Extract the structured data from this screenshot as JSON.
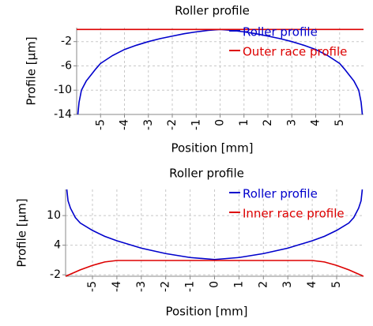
{
  "chart_data": [
    {
      "type": "line",
      "title": "Roller profile",
      "x_label": "Position [mm]",
      "y_label": "Profile [µm]",
      "xlim": [
        -6,
        6
      ],
      "ylim": [
        -14,
        0.3
      ],
      "xticks": [
        -5,
        -4,
        -3,
        -2,
        -1,
        0,
        1,
        2,
        3,
        4,
        5
      ],
      "yticks": [
        -2,
        -6,
        -10,
        -14
      ],
      "grid": true,
      "legend": "upper right",
      "series": [
        {
          "name": "Roller profile",
          "color": "#0000cc",
          "x": [
            -5.95,
            -5.9,
            -5.8,
            -5.6,
            -5.4,
            -5.2,
            -5,
            -4.5,
            -4,
            -3.5,
            -3,
            -2.5,
            -2,
            -1.5,
            -1,
            -0.5,
            0,
            0.5,
            1,
            1.5,
            2,
            2.5,
            3,
            3.5,
            4,
            4.5,
            5,
            5.2,
            5.4,
            5.6,
            5.8,
            5.9,
            5.95
          ],
          "values": [
            -14,
            -12,
            -10,
            -8.5,
            -7.5,
            -6.5,
            -5.6,
            -4.3,
            -3.3,
            -2.6,
            -2,
            -1.5,
            -1.1,
            -0.7,
            -0.4,
            -0.15,
            0,
            -0.15,
            -0.4,
            -0.7,
            -1.1,
            -1.5,
            -2,
            -2.6,
            -3.3,
            -4.3,
            -5.6,
            -6.5,
            -7.5,
            -8.5,
            -10,
            -12,
            -14
          ]
        },
        {
          "name": "Outer race profile",
          "color": "#dd0000",
          "x": [
            -6,
            6
          ],
          "values": [
            0,
            0
          ]
        }
      ]
    },
    {
      "type": "line",
      "title": "Roller profile",
      "x_label": "Position [mm]",
      "y_label": "Profile [µm]",
      "xlim": [
        -6.1,
        6.1
      ],
      "ylim": [
        -2.3,
        15.3
      ],
      "xticks": [
        -5,
        -4,
        -3,
        -2,
        -1,
        0,
        1,
        2,
        3,
        4,
        5
      ],
      "yticks": [
        10,
        4,
        -2
      ],
      "grid": true,
      "legend": "upper right",
      "series": [
        {
          "name": "Roller profile",
          "color": "#0000cc",
          "x": [
            -6.05,
            -6,
            -5.9,
            -5.7,
            -5.5,
            -5,
            -4.5,
            -4,
            -3,
            -2,
            -1,
            0,
            1,
            2,
            3,
            4,
            4.5,
            5,
            5.5,
            5.7,
            5.9,
            6,
            6.05
          ],
          "values": [
            15.3,
            13,
            11.5,
            9.6,
            8.5,
            7,
            5.8,
            4.9,
            3.4,
            2.3,
            1.5,
            1.1,
            1.5,
            2.3,
            3.4,
            4.9,
            5.8,
            7,
            8.5,
            9.6,
            11.5,
            13,
            15.3
          ]
        },
        {
          "name": "Inner race profile",
          "color": "#dd0000",
          "x": [
            -6.1,
            -5.5,
            -5,
            -4.5,
            -4,
            4,
            4.5,
            5,
            5.5,
            6.1
          ],
          "values": [
            -2.3,
            -1,
            -0.1,
            0.6,
            0.9,
            0.9,
            0.6,
            -0.1,
            -1,
            -2.3
          ]
        }
      ]
    }
  ]
}
